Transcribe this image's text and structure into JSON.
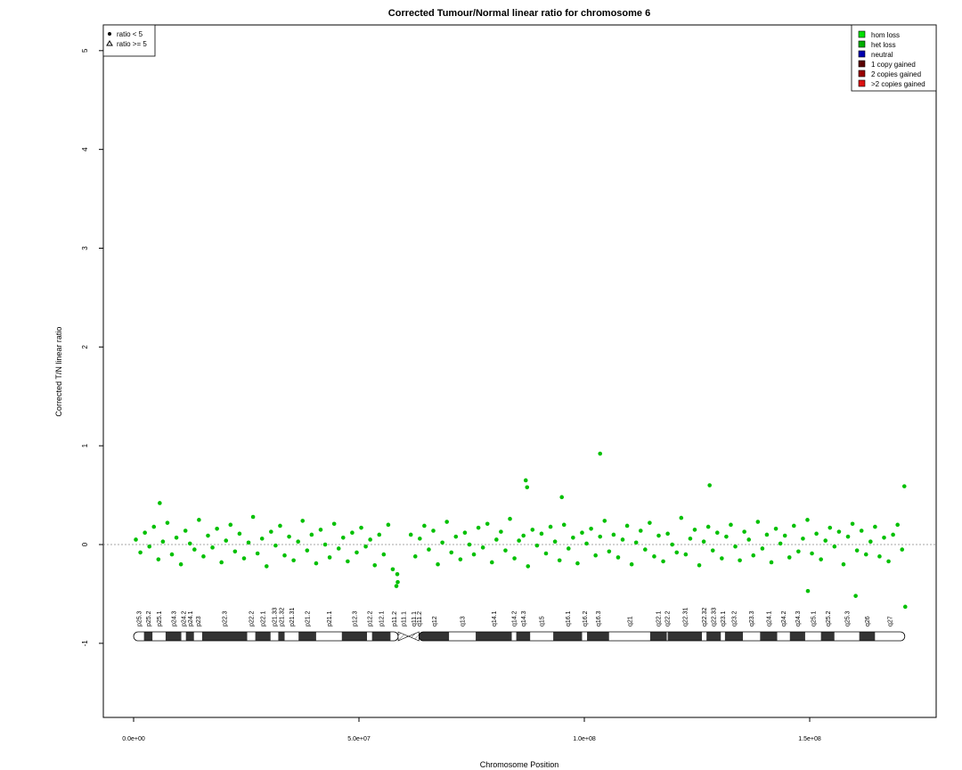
{
  "chart_data": {
    "type": "scatter",
    "title": "Corrected Tumour/Normal linear ratio for chromosome  6",
    "x_label": "Chromosome Position",
    "y_label": "Corrected T/N linear ratio",
    "xlim": [
      -6720000,
      178060000
    ],
    "ylim": [
      -1.75,
      5.26
    ],
    "xticks": [
      {
        "value": 0,
        "label": "0.0e+00"
      },
      {
        "value": 50000000,
        "label": "5.0e+07"
      },
      {
        "value": 100000000,
        "label": "1.0e+08"
      },
      {
        "value": 150000000,
        "label": "1.5e+08"
      }
    ],
    "yticks": [
      -1,
      0,
      1,
      2,
      3,
      4,
      5
    ],
    "reference_line": 0,
    "reference_line_color": "#888888",
    "legend_position": "top-left",
    "series": [
      {
        "name": "ratio < 5",
        "marker": "circle",
        "color": "#00c000",
        "x": [
          500000.0,
          1500000.0,
          2500000.0,
          3500000.0,
          4500000.0,
          5500000.0,
          6500000.0,
          7500000.0,
          8500000.0,
          9500000.0,
          10500000.0,
          11500000.0,
          12500000.0,
          13500000.0,
          14500000.0,
          15500000.0,
          16500000.0,
          17500000.0,
          18500000.0,
          19500000.0,
          20500000.0,
          21500000.0,
          22500000.0,
          23500000.0,
          24500000.0,
          25500000.0,
          26500000.0,
          27500000.0,
          28500000.0,
          29500000.0,
          30500000.0,
          31500000.0,
          32500000.0,
          33500000.0,
          34500000.0,
          35500000.0,
          36500000.0,
          37500000.0,
          38500000.0,
          39500000.0,
          40500000.0,
          41500000.0,
          42500000.0,
          43500000.0,
          44500000.0,
          45500000.0,
          46500000.0,
          47500000.0,
          48500000.0,
          49500000.0,
          50500000.0,
          51500000.0,
          52500000.0,
          53500000.0,
          54500000.0,
          55500000.0,
          56500000.0,
          57500000.0,
          58500000.0,
          61500000.0,
          62500000.0,
          63500000.0,
          64500000.0,
          65500000.0,
          66500000.0,
          67500000.0,
          68500000.0,
          69500000.0,
          70500000.0,
          71500000.0,
          72500000.0,
          73500000.0,
          74500000.0,
          75500000.0,
          76500000.0,
          77500000.0,
          78500000.0,
          79500000.0,
          80500000.0,
          81500000.0,
          82500000.0,
          83500000.0,
          84500000.0,
          85500000.0,
          86500000.0,
          87500000.0,
          88500000.0,
          89500000.0,
          90500000.0,
          91500000.0,
          92500000.0,
          93500000.0,
          94500000.0,
          95500000.0,
          96500000.0,
          97500000.0,
          98500000.0,
          99500000.0,
          100500000.0,
          101500000.0,
          102500000.0,
          103500000.0,
          104500000.0,
          105500000.0,
          106500000.0,
          107500000.0,
          108500000.0,
          109500000.0,
          110500000.0,
          111500000.0,
          112500000.0,
          113500000.0,
          114500000.0,
          115500000.0,
          116500000.0,
          117500000.0,
          118500000.0,
          119500000.0,
          120500000.0,
          121500000.0,
          122500000.0,
          123500000.0,
          124500000.0,
          125500000.0,
          126500000.0,
          127500000.0,
          128500000.0,
          129500000.0,
          130500000.0,
          131500000.0,
          132500000.0,
          133500000.0,
          134500000.0,
          135500000.0,
          136500000.0,
          137500000.0,
          138500000.0,
          139500000.0,
          140500000.0,
          141500000.0,
          142500000.0,
          143500000.0,
          144500000.0,
          145500000.0,
          146500000.0,
          147500000.0,
          148500000.0,
          149500000.0,
          150500000.0,
          151500000.0,
          152500000.0,
          153500000.0,
          154500000.0,
          155500000.0,
          156500000.0,
          157500000.0,
          158500000.0,
          159500000.0,
          160500000.0,
          161500000.0,
          162500000.0,
          163500000.0,
          164500000.0,
          165500000.0,
          166500000.0,
          167500000.0,
          168500000.0,
          169500000.0,
          170500000.0,
          58300000.0,
          58600000.0,
          87000000.0,
          87300000.0,
          103500000.0,
          127800000.0,
          171000000.0,
          171200000.0,
          160200000.0,
          149600000.0,
          5800000.0,
          95000000.0
        ],
        "values": [
          0.05,
          -0.08,
          0.12,
          -0.02,
          0.18,
          -0.15,
          0.03,
          0.22,
          -0.1,
          0.07,
          -0.2,
          0.14,
          0.01,
          -0.05,
          0.25,
          -0.12,
          0.09,
          -0.03,
          0.16,
          -0.18,
          0.04,
          0.2,
          -0.07,
          0.11,
          -0.14,
          0.02,
          0.28,
          -0.09,
          0.06,
          -0.22,
          0.13,
          -0.01,
          0.19,
          -0.11,
          0.08,
          -0.16,
          0.03,
          0.24,
          -0.06,
          0.1,
          -0.19,
          0.15,
          0.0,
          -0.13,
          0.21,
          -0.04,
          0.07,
          -0.17,
          0.12,
          -0.08,
          0.17,
          -0.02,
          0.05,
          -0.21,
          0.1,
          -0.1,
          0.2,
          -0.25,
          -0.3,
          0.1,
          -0.12,
          0.06,
          0.19,
          -0.05,
          0.14,
          -0.2,
          0.02,
          0.23,
          -0.08,
          0.08,
          -0.15,
          0.12,
          0.0,
          -0.1,
          0.17,
          -0.03,
          0.21,
          -0.18,
          0.05,
          0.13,
          -0.06,
          0.26,
          -0.14,
          0.04,
          0.09,
          -0.22,
          0.15,
          -0.01,
          0.11,
          -0.09,
          0.18,
          0.03,
          -0.16,
          0.2,
          -0.04,
          0.07,
          -0.19,
          0.12,
          0.01,
          0.16,
          -0.11,
          0.08,
          0.24,
          -0.07,
          0.1,
          -0.13,
          0.05,
          0.19,
          -0.2,
          0.02,
          0.14,
          -0.05,
          0.22,
          -0.12,
          0.09,
          -0.17,
          0.11,
          0.0,
          -0.08,
          0.27,
          -0.1,
          0.06,
          0.15,
          -0.21,
          0.03,
          0.18,
          -0.06,
          0.12,
          -0.14,
          0.08,
          0.2,
          -0.02,
          -0.16,
          0.13,
          0.05,
          -0.11,
          0.23,
          -0.04,
          0.1,
          -0.18,
          0.16,
          0.01,
          0.09,
          -0.13,
          0.19,
          -0.07,
          0.06,
          0.25,
          -0.09,
          0.11,
          -0.15,
          0.04,
          0.17,
          -0.02,
          0.13,
          -0.2,
          0.08,
          0.21,
          -0.06,
          0.14,
          -0.1,
          0.03,
          0.18,
          -0.12,
          0.07,
          -0.17,
          0.1,
          0.2,
          -0.05,
          -0.42,
          -0.38,
          0.65,
          0.58,
          0.92,
          0.6,
          0.59,
          -0.63,
          -0.52,
          -0.47,
          0.42,
          0.48
        ]
      },
      {
        "name": "ratio >= 5",
        "marker": "triangle",
        "color": "#00c000",
        "x": [],
        "values": []
      }
    ],
    "copy_number_legend": [
      {
        "name": "hom loss",
        "color": "#00e000"
      },
      {
        "name": "het loss",
        "color": "#00b000"
      },
      {
        "name": "neutral",
        "color": "#0000b0"
      },
      {
        "name": "1 copy gained",
        "color": "#5a0000"
      },
      {
        "name": "2 copies gained",
        "color": "#990000"
      },
      {
        "name": ">2 copies gained",
        "color": "#dd1111"
      }
    ],
    "centromere": [
      58700000,
      63300000
    ],
    "bands": [
      {
        "name": "p25.3",
        "start": 0,
        "end": 2300000,
        "color": "#ffffff"
      },
      {
        "name": "p25.2",
        "start": 2300000,
        "end": 4200000,
        "color": "#333333"
      },
      {
        "name": "p25.1",
        "start": 4200000,
        "end": 7100000,
        "color": "#ffffff"
      },
      {
        "name": "p24.3",
        "start": 7100000,
        "end": 10600000,
        "color": "#333333"
      },
      {
        "name": "p24.2",
        "start": 10600000,
        "end": 11600000,
        "color": "#ffffff"
      },
      {
        "name": "p24.1",
        "start": 11600000,
        "end": 13400000,
        "color": "#333333"
      },
      {
        "name": "p23",
        "start": 13400000,
        "end": 15200000,
        "color": "#ffffff"
      },
      {
        "name": "p22.3",
        "start": 15200000,
        "end": 25200000,
        "color": "#333333"
      },
      {
        "name": "p22.2",
        "start": 25200000,
        "end": 27000000,
        "color": "#ffffff"
      },
      {
        "name": "p22.1",
        "start": 27000000,
        "end": 30400000,
        "color": "#333333"
      },
      {
        "name": "p21.33",
        "start": 30400000,
        "end": 32100000,
        "color": "#ffffff"
      },
      {
        "name": "p21.32",
        "start": 32100000,
        "end": 33500000,
        "color": "#333333"
      },
      {
        "name": "p21.31",
        "start": 33500000,
        "end": 36600000,
        "color": "#ffffff"
      },
      {
        "name": "p21.2",
        "start": 36600000,
        "end": 40500000,
        "color": "#333333"
      },
      {
        "name": "p21.1",
        "start": 40500000,
        "end": 46200000,
        "color": "#ffffff"
      },
      {
        "name": "p12.3",
        "start": 46200000,
        "end": 51800000,
        "color": "#333333"
      },
      {
        "name": "p12.2",
        "start": 51800000,
        "end": 52900000,
        "color": "#ffffff"
      },
      {
        "name": "p12.1",
        "start": 52900000,
        "end": 57000000,
        "color": "#333333"
      },
      {
        "name": "p11.2",
        "start": 57000000,
        "end": 58700000,
        "color": "#ffffff"
      },
      {
        "name": "p11.1",
        "start": 58700000,
        "end": 61000000,
        "color": "#dddddd"
      },
      {
        "name": "q11.1",
        "start": 61000000,
        "end": 63300000,
        "color": "#dddddd"
      },
      {
        "name": "q11.2",
        "start": 63300000,
        "end": 63400000,
        "color": "#ffffff"
      },
      {
        "name": "q12",
        "start": 63400000,
        "end": 70000000,
        "color": "#333333"
      },
      {
        "name": "q13",
        "start": 70000000,
        "end": 75900000,
        "color": "#ffffff"
      },
      {
        "name": "q14.1",
        "start": 75900000,
        "end": 83900000,
        "color": "#333333"
      },
      {
        "name": "q14.2",
        "start": 83900000,
        "end": 84900000,
        "color": "#ffffff"
      },
      {
        "name": "q14.3",
        "start": 84900000,
        "end": 88000000,
        "color": "#333333"
      },
      {
        "name": "q15",
        "start": 88000000,
        "end": 93100000,
        "color": "#ffffff"
      },
      {
        "name": "q16.1",
        "start": 93100000,
        "end": 99500000,
        "color": "#333333"
      },
      {
        "name": "q16.2",
        "start": 99500000,
        "end": 100600000,
        "color": "#ffffff"
      },
      {
        "name": "q16.3",
        "start": 100600000,
        "end": 105500000,
        "color": "#333333"
      },
      {
        "name": "q21",
        "start": 105500000,
        "end": 114600000,
        "color": "#ffffff"
      },
      {
        "name": "q22.1",
        "start": 114600000,
        "end": 118300000,
        "color": "#333333"
      },
      {
        "name": "q22.2",
        "start": 118300000,
        "end": 118500000,
        "color": "#ffffff"
      },
      {
        "name": "q22.31",
        "start": 118500000,
        "end": 126100000,
        "color": "#333333"
      },
      {
        "name": "q22.32",
        "start": 126100000,
        "end": 127100000,
        "color": "#ffffff"
      },
      {
        "name": "q22.33",
        "start": 127100000,
        "end": 130300000,
        "color": "#333333"
      },
      {
        "name": "q23.1",
        "start": 130300000,
        "end": 131200000,
        "color": "#ffffff"
      },
      {
        "name": "q23.2",
        "start": 131200000,
        "end": 135200000,
        "color": "#333333"
      },
      {
        "name": "q23.3",
        "start": 135200000,
        "end": 139000000,
        "color": "#ffffff"
      },
      {
        "name": "q24.1",
        "start": 139000000,
        "end": 142800000,
        "color": "#333333"
      },
      {
        "name": "q24.2",
        "start": 142800000,
        "end": 145600000,
        "color": "#ffffff"
      },
      {
        "name": "q24.3",
        "start": 145600000,
        "end": 149000000,
        "color": "#333333"
      },
      {
        "name": "q25.1",
        "start": 149000000,
        "end": 152500000,
        "color": "#ffffff"
      },
      {
        "name": "q25.2",
        "start": 152500000,
        "end": 155500000,
        "color": "#333333"
      },
      {
        "name": "q25.3",
        "start": 155500000,
        "end": 161000000,
        "color": "#ffffff"
      },
      {
        "name": "q26",
        "start": 161000000,
        "end": 164500000,
        "color": "#333333"
      },
      {
        "name": "q27",
        "start": 164500000,
        "end": 171100000,
        "color": "#ffffff"
      }
    ]
  }
}
